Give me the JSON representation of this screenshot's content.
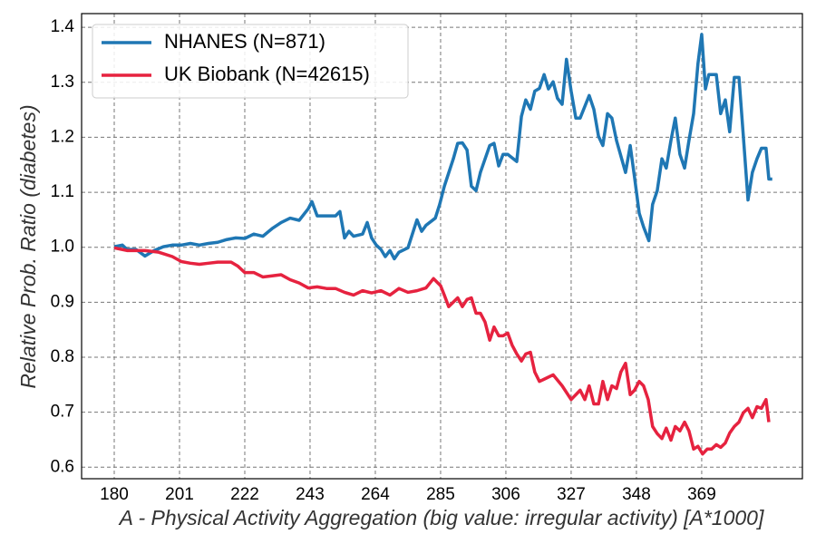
{
  "chart_data": {
    "type": "line",
    "xlabel": "A - Physical Activity Aggregation (big value: irregular activity) [A*1000]",
    "ylabel": "Relative Prob. Ratio (diabetes)",
    "xlim": [
      169.5,
      401.4
    ],
    "ylim": [
      0.579,
      1.425
    ],
    "xticks": [
      180,
      201,
      222,
      243,
      264,
      285,
      306,
      327,
      348,
      369
    ],
    "yticks": [
      0.6,
      0.7,
      0.8,
      0.9,
      {
        "value": 1,
        "label": "1.0"
      },
      1.1,
      1.2,
      1.3,
      1.4
    ],
    "grid": true,
    "legend": "upper left",
    "series": [
      {
        "name": "NHANES (N=871)",
        "color": "#1f77b4",
        "x": [
          180,
          182.6,
          184.1,
          187,
          189.9,
          192.8,
          195.8,
          198.7,
          201.6,
          204.5,
          207.4,
          210.3,
          213.3,
          216.2,
          219.1,
          222,
          224.9,
          227.8,
          230.8,
          233.7,
          236.6,
          239.5,
          242.4,
          243.6,
          245.3,
          248.3,
          251.2,
          252.6,
          254.1,
          255.5,
          257,
          259.9,
          261.4,
          262.8,
          264.3,
          265.8,
          267.2,
          268.7,
          270.1,
          271.6,
          274.5,
          277.4,
          278.9,
          280.3,
          283.3,
          284.7,
          286.2,
          289.1,
          290.5,
          292,
          293.5,
          294.9,
          296.4,
          297.8,
          300.8,
          302.2,
          303.7,
          305.1,
          306.6,
          309.5,
          311,
          312.4,
          313.9,
          315.3,
          316.8,
          318.3,
          319.7,
          321.2,
          322.6,
          324.1,
          325.5,
          327,
          328.5,
          329.9,
          332.8,
          334.3,
          335.8,
          337.2,
          338.7,
          340.1,
          341.6,
          344.5,
          346,
          347.4,
          348.9,
          350.3,
          352,
          353.2,
          354.7,
          356.2,
          357.6,
          359.1,
          360.5,
          362,
          363.5,
          364.9,
          366.4,
          367.8,
          369,
          370.2,
          371.3,
          373.7,
          375.1,
          376.6,
          378,
          379.5,
          381,
          382.4,
          383.9,
          385.3,
          386.8,
          388.2,
          389.7,
          390.6,
          391.7
        ],
        "values": [
          1.001,
          1.004,
          0.996,
          0.996,
          0.984,
          0.994,
          1.001,
          1.004,
          1.004,
          1.007,
          1.004,
          1.007,
          1.009,
          1.014,
          1.017,
          1.016,
          1.024,
          1.02,
          1.034,
          1.045,
          1.053,
          1.049,
          1.07,
          1.083,
          1.057,
          1.057,
          1.057,
          1.065,
          1.017,
          1.029,
          1.02,
          1.024,
          1.045,
          1.017,
          1.004,
          0.996,
          0.983,
          0.994,
          0.979,
          0.991,
          0.999,
          1.05,
          1.029,
          1.04,
          1.053,
          1.078,
          1.111,
          1.161,
          1.189,
          1.19,
          1.177,
          1.111,
          1.103,
          1.136,
          1.185,
          1.189,
          1.148,
          1.169,
          1.169,
          1.156,
          1.238,
          1.268,
          1.251,
          1.284,
          1.289,
          1.314,
          1.288,
          1.301,
          1.271,
          1.26,
          1.342,
          1.284,
          1.235,
          1.235,
          1.276,
          1.251,
          1.202,
          1.185,
          1.243,
          1.235,
          1.194,
          1.136,
          1.185,
          1.127,
          1.062,
          1.037,
          1.012,
          1.078,
          1.103,
          1.161,
          1.144,
          1.194,
          1.235,
          1.169,
          1.144,
          1.194,
          1.243,
          1.334,
          1.387,
          1.288,
          1.314,
          1.314,
          1.243,
          1.268,
          1.21,
          1.309,
          1.309,
          1.202,
          1.086,
          1.136,
          1.161,
          1.18,
          1.18,
          1.124,
          1.124
        ]
      },
      {
        "name": "UK Biobank (N=42615)",
        "color": "#e6223f",
        "x": [
          180,
          184.1,
          189.9,
          194.3,
          198.7,
          201.6,
          204.5,
          207.4,
          210.3,
          213.3,
          217.6,
          219.7,
          222,
          224.9,
          227.8,
          230.8,
          233.7,
          236.6,
          239.5,
          242.4,
          245.3,
          248.3,
          251.2,
          254.1,
          257,
          259.9,
          262.8,
          265.8,
          268.7,
          271.6,
          274.5,
          277.4,
          280.3,
          282.7,
          285,
          286.2,
          287.6,
          290.5,
          292,
          293.5,
          294.9,
          296.4,
          297.8,
          299.3,
          300.8,
          302.2,
          303.7,
          305.1,
          306.6,
          308,
          309.5,
          311,
          312.4,
          313.9,
          315.3,
          316.8,
          318.3,
          321.2,
          324.1,
          327,
          329.9,
          331.4,
          332.8,
          334.3,
          335.8,
          337.2,
          338.7,
          340.1,
          341.6,
          343,
          344.5,
          346,
          347.4,
          348.9,
          350.3,
          351.8,
          353.2,
          354.7,
          356.2,
          357.6,
          359.1,
          360.5,
          362,
          363.5,
          364.9,
          366.4,
          367.8,
          369.3,
          370.8,
          372.2,
          373.7,
          375.1,
          376.6,
          378,
          379.5,
          381,
          382.4,
          383.9,
          385.3,
          386.8,
          388.2,
          389.7,
          390.6
        ],
        "values": [
          0.999,
          0.994,
          0.994,
          0.991,
          0.983,
          0.974,
          0.971,
          0.969,
          0.971,
          0.973,
          0.973,
          0.966,
          0.954,
          0.954,
          0.946,
          0.948,
          0.95,
          0.941,
          0.935,
          0.926,
          0.928,
          0.925,
          0.925,
          0.918,
          0.913,
          0.921,
          0.917,
          0.921,
          0.913,
          0.925,
          0.918,
          0.921,
          0.926,
          0.943,
          0.93,
          0.913,
          0.892,
          0.908,
          0.892,
          0.905,
          0.908,
          0.88,
          0.88,
          0.864,
          0.831,
          0.855,
          0.839,
          0.839,
          0.844,
          0.822,
          0.806,
          0.793,
          0.806,
          0.809,
          0.773,
          0.756,
          0.76,
          0.768,
          0.748,
          0.723,
          0.74,
          0.723,
          0.748,
          0.715,
          0.715,
          0.756,
          0.723,
          0.748,
          0.743,
          0.773,
          0.789,
          0.732,
          0.74,
          0.756,
          0.748,
          0.723,
          0.674,
          0.661,
          0.652,
          0.671,
          0.649,
          0.674,
          0.666,
          0.682,
          0.666,
          0.633,
          0.638,
          0.624,
          0.633,
          0.633,
          0.641,
          0.636,
          0.644,
          0.662,
          0.674,
          0.682,
          0.699,
          0.707,
          0.69,
          0.71,
          0.707,
          0.723,
          0.682
        ]
      }
    ]
  }
}
